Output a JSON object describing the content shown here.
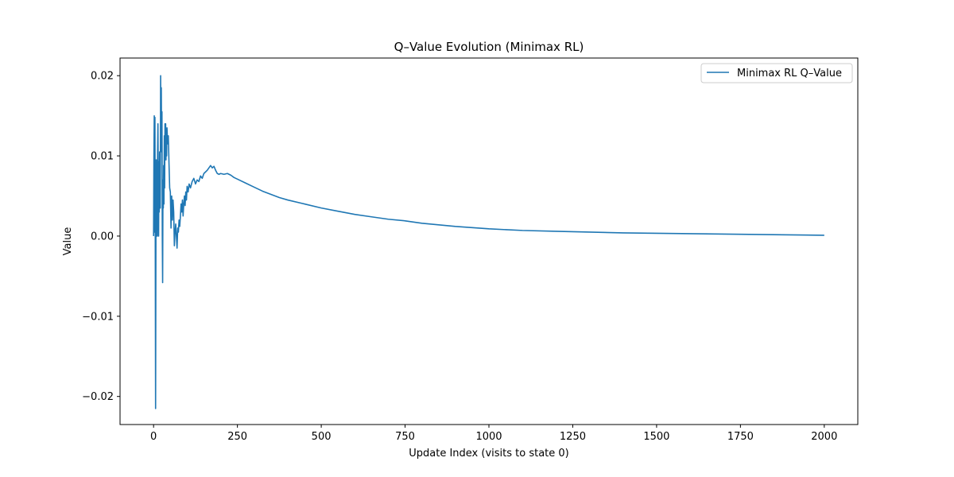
{
  "chart_data": {
    "type": "line",
    "title": "Q–Value Evolution (Minimax RL)",
    "xlabel": "Update Index (visits to state 0)",
    "ylabel": "Value",
    "xlim": [
      -100,
      2100
    ],
    "ylim": [
      -0.0235,
      0.0222
    ],
    "xticks": [
      0,
      250,
      500,
      750,
      1000,
      1250,
      1500,
      1750,
      2000
    ],
    "xtick_labels": [
      "0",
      "250",
      "500",
      "750",
      "1000",
      "1250",
      "1500",
      "1750",
      "2000"
    ],
    "yticks": [
      -0.02,
      -0.01,
      0.0,
      0.01,
      0.02
    ],
    "ytick_labels": [
      "−0.02",
      "−0.01",
      "0.00",
      "0.01",
      "0.02"
    ],
    "grid": false,
    "legend_position": "top-right",
    "series": [
      {
        "name": "Minimax RL Q–Value",
        "color": "#1f77b4",
        "x": [
          0,
          1,
          2,
          3,
          4,
          5,
          6,
          7,
          8,
          9,
          10,
          11,
          12,
          13,
          14,
          15,
          16,
          17,
          18,
          19,
          20,
          21,
          22,
          23,
          24,
          25,
          26,
          27,
          28,
          29,
          30,
          31,
          32,
          33,
          34,
          35,
          36,
          37,
          38,
          39,
          40,
          42,
          44,
          46,
          48,
          50,
          52,
          54,
          56,
          58,
          60,
          62,
          64,
          66,
          68,
          70,
          72,
          74,
          76,
          78,
          80,
          82,
          84,
          86,
          88,
          90,
          92,
          94,
          96,
          98,
          100,
          103,
          106,
          110,
          115,
          120,
          125,
          130,
          135,
          140,
          145,
          150,
          155,
          160,
          165,
          170,
          175,
          180,
          185,
          190,
          195,
          200,
          210,
          220,
          230,
          240,
          250,
          275,
          300,
          325,
          350,
          375,
          400,
          450,
          500,
          550,
          600,
          650,
          700,
          750,
          800,
          900,
          1000,
          1100,
          1200,
          1300,
          1400,
          1500,
          1600,
          1700,
          1800,
          1900,
          2000
        ],
        "values": [
          0.0,
          0.0098,
          0.015,
          0.0005,
          0.0148,
          0.0,
          -0.0215,
          0.0,
          0.0095,
          0.0,
          0.003,
          0.0,
          0.0105,
          0.014,
          0.007,
          0.0,
          0.0093,
          0.003,
          0.0105,
          0.006,
          0.0035,
          0.02,
          0.0115,
          0.0185,
          0.0105,
          0.0155,
          0.0,
          -0.0058,
          0.007,
          0.0035,
          0.0088,
          0.004,
          0.0125,
          0.006,
          0.014,
          0.0105,
          0.014,
          0.0095,
          0.013,
          0.01,
          0.0135,
          0.0115,
          0.0125,
          0.009,
          0.006,
          0.0055,
          0.001,
          0.005,
          0.002,
          0.0045,
          0.003,
          -0.0012,
          0.0005,
          0.0015,
          0.0,
          -0.0015,
          0.001,
          0.0005,
          0.002,
          0.0012,
          0.0025,
          0.004,
          0.003,
          0.0045,
          0.0025,
          0.004,
          0.005,
          0.0038,
          0.0055,
          0.0045,
          0.0062,
          0.0055,
          0.0065,
          0.006,
          0.0068,
          0.0072,
          0.0065,
          0.007,
          0.0068,
          0.0075,
          0.0072,
          0.0078,
          0.008,
          0.0082,
          0.0085,
          0.0088,
          0.0085,
          0.0087,
          0.0082,
          0.0078,
          0.0077,
          0.0078,
          0.0077,
          0.0078,
          0.0076,
          0.0073,
          0.0071,
          0.0066,
          0.0061,
          0.0056,
          0.0052,
          0.0048,
          0.0045,
          0.004,
          0.0035,
          0.0031,
          0.0027,
          0.0024,
          0.0021,
          0.0019,
          0.0016,
          0.0012,
          0.0009,
          0.0007,
          0.0006,
          0.0005,
          0.0004,
          0.00035,
          0.0003,
          0.00025,
          0.0002,
          0.00015,
          0.0001
        ]
      }
    ]
  }
}
